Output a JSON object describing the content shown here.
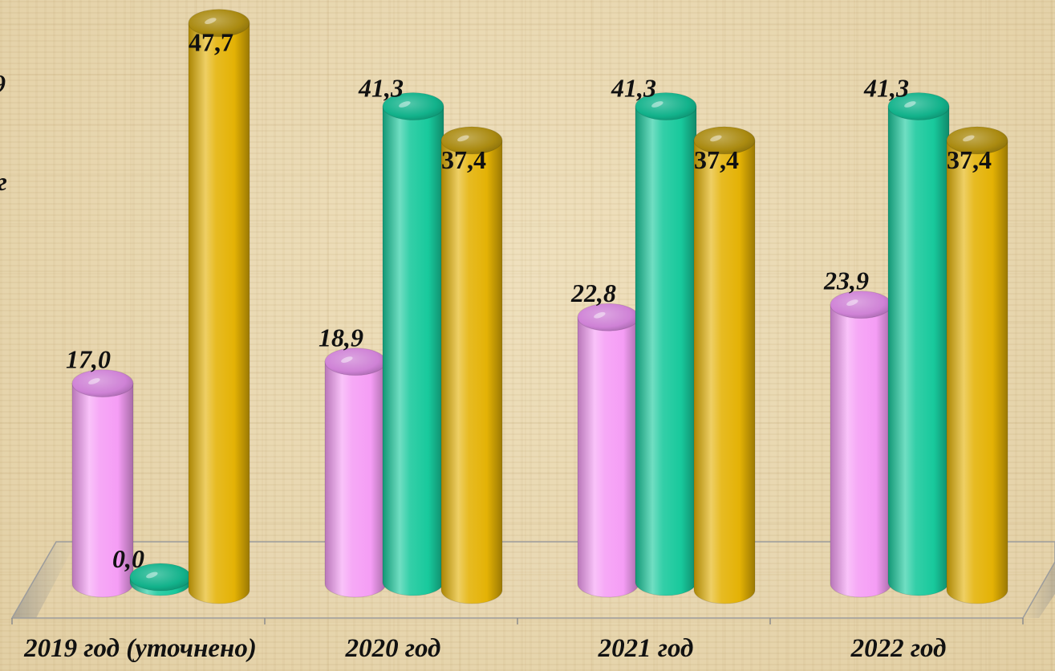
{
  "background": {
    "color": "#e7d6ae"
  },
  "edge_text": [
    "9",
    "г"
  ],
  "chart_data": {
    "type": "bar",
    "style": "3d-cylinder",
    "grid": false,
    "legend": "none",
    "categories": [
      "2019 год (уточнено)",
      "2020 год",
      "2021 год",
      "2022 год"
    ],
    "series": [
      {
        "values": [
          17.0,
          18.9,
          22.8,
          23.9
        ],
        "labels": [
          "17,0",
          "18,9",
          "22,8",
          "23,9"
        ],
        "color": "#f59df5",
        "cap_color": "#cf82d6"
      },
      {
        "values": [
          0.0,
          41.3,
          41.3,
          41.3
        ],
        "labels": [
          "0,0",
          "41,3",
          "41,3",
          "41,3"
        ],
        "color": "#18c99c",
        "cap_color": "#12b28b"
      },
      {
        "values": [
          47.7,
          37.4,
          37.4,
          37.4
        ],
        "labels": [
          "47,7",
          "37,4",
          "37,4",
          "37,4"
        ],
        "color": "#e4b205",
        "cap_color": "#aa8a10"
      }
    ]
  }
}
